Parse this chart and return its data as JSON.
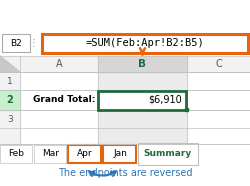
{
  "formula_text": "=SUM(Feb:Apr!B2:B5)",
  "formula_box_color": "#E8640A",
  "cell_ref": "B2",
  "col_a_label": "A",
  "col_b_label": "B",
  "col_c_label": "C",
  "row1_label": "1",
  "row2_label": "2",
  "row3_label": "3",
  "grand_total_label": "Grand Total:",
  "value": "$6,910",
  "tabs": [
    "Feb",
    "Mar",
    "Apr",
    "Jan",
    "Summary"
  ],
  "tab_highlighted": [
    "Apr",
    "Jan"
  ],
  "tab_highlight_color": "#E8640A",
  "summary_tab_color": "#1F6B3A",
  "arrow_color": "#2E75B6",
  "annotation_text": "The endpoints are reversed",
  "annotation_color": "#2E75B6",
  "bg_color": "#FFFFFF",
  "grid_color": "#C0C0C0",
  "header_bg": "#F2F2F2",
  "selected_col_bg": "#D6D6D6",
  "selected_cell_border": "#1F6B3A",
  "formula_arrow_color": "#E8640A",
  "cell_ref_border": "#AAAAAA"
}
